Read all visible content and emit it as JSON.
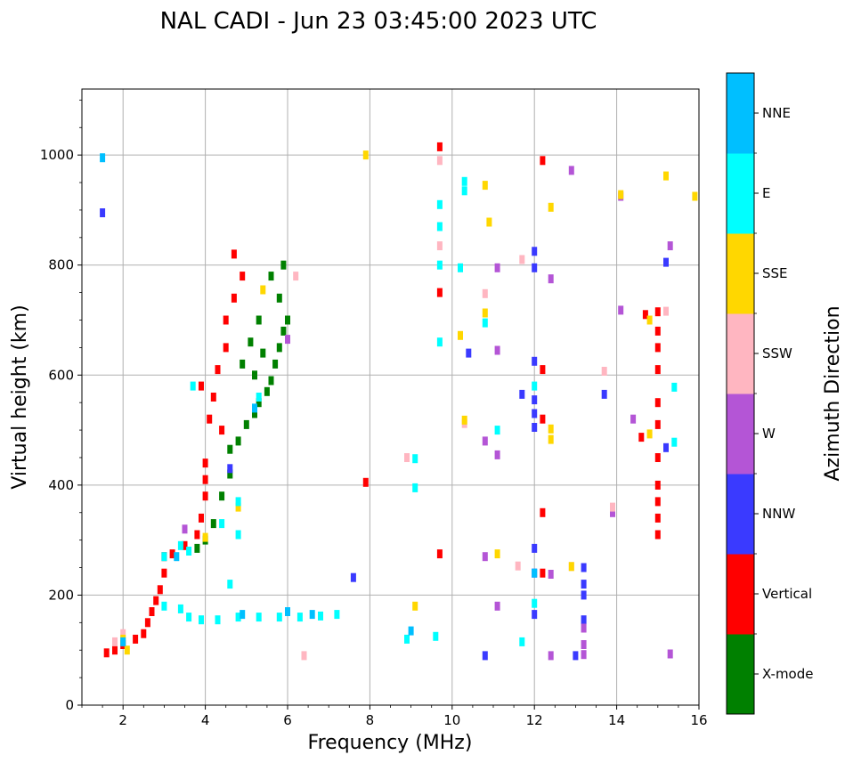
{
  "chart_data": {
    "type": "scatter",
    "title": "NAL CADI - Jun 23 03:45:00 2023 UTC",
    "xlabel": "Frequency (MHz)",
    "ylabel": "Virtual height (km)",
    "xlim": [
      1,
      16
    ],
    "ylim": [
      0,
      1120
    ],
    "xticks": [
      2,
      4,
      6,
      8,
      10,
      12,
      14,
      16
    ],
    "yticks": [
      0,
      200,
      400,
      600,
      800,
      1000
    ],
    "grid": true,
    "colorbar": {
      "title": "Azimuth Direction",
      "categories": [
        {
          "label": "X-mode",
          "color": "#008000"
        },
        {
          "label": "Vertical",
          "color": "#ff0000"
        },
        {
          "label": "NNW",
          "color": "#3a3aff"
        },
        {
          "label": "W",
          "color": "#b455d6"
        },
        {
          "label": "SSW",
          "color": "#ffb6c1"
        },
        {
          "label": "SSE",
          "color": "#ffd700"
        },
        {
          "label": "E",
          "color": "#00ffff"
        },
        {
          "label": "NNE",
          "color": "#00bfff"
        }
      ]
    },
    "series": [
      {
        "name": "X-mode",
        "points": [
          [
            3.8,
            285
          ],
          [
            4.0,
            300
          ],
          [
            4.2,
            330
          ],
          [
            4.4,
            380
          ],
          [
            4.6,
            420
          ],
          [
            4.6,
            465
          ],
          [
            4.8,
            480
          ],
          [
            5.0,
            510
          ],
          [
            5.2,
            530
          ],
          [
            5.3,
            550
          ],
          [
            5.5,
            570
          ],
          [
            5.6,
            590
          ],
          [
            5.7,
            620
          ],
          [
            5.8,
            650
          ],
          [
            5.9,
            680
          ],
          [
            6.0,
            700
          ],
          [
            5.2,
            600
          ],
          [
            5.4,
            640
          ],
          [
            5.8,
            740
          ],
          [
            5.9,
            800
          ],
          [
            5.6,
            780
          ],
          [
            5.1,
            660
          ],
          [
            4.9,
            620
          ],
          [
            5.3,
            700
          ]
        ]
      },
      {
        "name": "Vertical",
        "points": [
          [
            1.6,
            95
          ],
          [
            1.8,
            100
          ],
          [
            2.0,
            110
          ],
          [
            2.3,
            120
          ],
          [
            2.5,
            130
          ],
          [
            2.6,
            150
          ],
          [
            2.7,
            170
          ],
          [
            2.8,
            190
          ],
          [
            2.9,
            210
          ],
          [
            3.0,
            240
          ],
          [
            3.0,
            270
          ],
          [
            3.2,
            275
          ],
          [
            3.5,
            290
          ],
          [
            3.8,
            310
          ],
          [
            3.9,
            340
          ],
          [
            4.0,
            380
          ],
          [
            4.0,
            410
          ],
          [
            4.0,
            440
          ],
          [
            4.1,
            520
          ],
          [
            4.2,
            560
          ],
          [
            4.3,
            610
          ],
          [
            4.5,
            650
          ],
          [
            4.5,
            700
          ],
          [
            4.7,
            740
          ],
          [
            4.9,
            780
          ],
          [
            4.7,
            820
          ],
          [
            3.9,
            580
          ],
          [
            4.4,
            500
          ],
          [
            7.9,
            405
          ],
          [
            9.7,
            275
          ],
          [
            9.7,
            750
          ],
          [
            9.7,
            1015
          ],
          [
            12.2,
            990
          ],
          [
            12.2,
            610
          ],
          [
            12.2,
            520
          ],
          [
            12.2,
            350
          ],
          [
            12.2,
            240
          ],
          [
            14.6,
            487
          ],
          [
            14.7,
            710
          ],
          [
            15.0,
            310
          ],
          [
            15.0,
            340
          ],
          [
            15.0,
            370
          ],
          [
            15.0,
            400
          ],
          [
            15.0,
            450
          ],
          [
            15.0,
            510
          ],
          [
            15.0,
            550
          ],
          [
            15.0,
            610
          ],
          [
            15.0,
            650
          ],
          [
            15.0,
            680
          ],
          [
            15.0,
            715
          ]
        ]
      },
      {
        "name": "NNW",
        "points": [
          [
            1.5,
            895
          ],
          [
            4.6,
            430
          ],
          [
            7.6,
            232
          ],
          [
            10.4,
            640
          ],
          [
            10.8,
            90
          ],
          [
            11.7,
            565
          ],
          [
            12.0,
            825
          ],
          [
            12.0,
            795
          ],
          [
            12.0,
            625
          ],
          [
            12.0,
            555
          ],
          [
            12.0,
            530
          ],
          [
            12.0,
            505
          ],
          [
            12.0,
            285
          ],
          [
            12.0,
            240
          ],
          [
            12.0,
            165
          ],
          [
            13.2,
            250
          ],
          [
            13.2,
            220
          ],
          [
            13.2,
            200
          ],
          [
            13.2,
            155
          ],
          [
            13.0,
            90
          ],
          [
            13.7,
            565
          ],
          [
            15.2,
            468
          ],
          [
            15.2,
            805
          ]
        ]
      },
      {
        "name": "W",
        "points": [
          [
            3.5,
            320
          ],
          [
            6.0,
            665
          ],
          [
            10.8,
            480
          ],
          [
            11.1,
            455
          ],
          [
            11.1,
            645
          ],
          [
            11.1,
            180
          ],
          [
            10.8,
            270
          ],
          [
            11.1,
            795
          ],
          [
            12.4,
            775
          ],
          [
            12.4,
            238
          ],
          [
            12.4,
            90
          ],
          [
            12.9,
            972
          ],
          [
            13.2,
            140
          ],
          [
            13.2,
            110
          ],
          [
            13.2,
            92
          ],
          [
            13.9,
            350
          ],
          [
            14.1,
            925
          ],
          [
            14.1,
            718
          ],
          [
            14.4,
            520
          ],
          [
            15.3,
            93
          ],
          [
            15.3,
            835
          ]
        ]
      },
      {
        "name": "SSW",
        "points": [
          [
            1.8,
            115
          ],
          [
            2.0,
            130
          ],
          [
            6.2,
            780
          ],
          [
            6.4,
            90
          ],
          [
            8.9,
            450
          ],
          [
            9.7,
            990
          ],
          [
            9.7,
            835
          ],
          [
            10.3,
            512
          ],
          [
            10.8,
            748
          ],
          [
            11.6,
            253
          ],
          [
            12.9,
            252
          ],
          [
            13.9,
            360
          ],
          [
            13.7,
            607
          ],
          [
            15.2,
            716
          ],
          [
            11.7,
            810
          ]
        ]
      },
      {
        "name": "SSE",
        "points": [
          [
            2.1,
            100
          ],
          [
            2.0,
            120
          ],
          [
            4.0,
            305
          ],
          [
            4.8,
            360
          ],
          [
            5.4,
            755
          ],
          [
            7.9,
            1000
          ],
          [
            9.1,
            180
          ],
          [
            10.2,
            672
          ],
          [
            10.3,
            518
          ],
          [
            10.8,
            713
          ],
          [
            10.8,
            945
          ],
          [
            10.9,
            878
          ],
          [
            11.1,
            275
          ],
          [
            12.4,
            905
          ],
          [
            12.4,
            502
          ],
          [
            12.4,
            483
          ],
          [
            12.9,
            252
          ],
          [
            14.1,
            928
          ],
          [
            14.8,
            493
          ],
          [
            14.8,
            700
          ],
          [
            15.2,
            962
          ],
          [
            15.9,
            925
          ]
        ]
      },
      {
        "name": "E",
        "points": [
          [
            3.0,
            180
          ],
          [
            3.4,
            175
          ],
          [
            3.6,
            160
          ],
          [
            3.9,
            155
          ],
          [
            4.3,
            155
          ],
          [
            4.8,
            160
          ],
          [
            5.3,
            160
          ],
          [
            5.8,
            160
          ],
          [
            6.3,
            160
          ],
          [
            6.8,
            162
          ],
          [
            7.2,
            165
          ],
          [
            3.4,
            290
          ],
          [
            3.6,
            280
          ],
          [
            3.0,
            270
          ],
          [
            4.4,
            330
          ],
          [
            4.8,
            310
          ],
          [
            4.8,
            370
          ],
          [
            3.7,
            580
          ],
          [
            4.6,
            220
          ],
          [
            5.3,
            560
          ],
          [
            8.9,
            120
          ],
          [
            9.1,
            448
          ],
          [
            9.1,
            395
          ],
          [
            9.7,
            870
          ],
          [
            9.7,
            910
          ],
          [
            9.7,
            660
          ],
          [
            9.7,
            800
          ],
          [
            10.2,
            795
          ],
          [
            10.3,
            935
          ],
          [
            10.3,
            952
          ],
          [
            10.8,
            695
          ],
          [
            11.1,
            500
          ],
          [
            12.0,
            185
          ],
          [
            12.0,
            580
          ],
          [
            11.7,
            115
          ],
          [
            15.4,
            478
          ],
          [
            15.4,
            578
          ],
          [
            9.6,
            125
          ]
        ]
      },
      {
        "name": "NNE",
        "points": [
          [
            1.5,
            995
          ],
          [
            2.0,
            115
          ],
          [
            3.3,
            270
          ],
          [
            4.9,
            165
          ],
          [
            5.2,
            540
          ],
          [
            6.0,
            170
          ],
          [
            6.6,
            165
          ],
          [
            9.0,
            135
          ],
          [
            12.0,
            240
          ]
        ]
      }
    ]
  }
}
